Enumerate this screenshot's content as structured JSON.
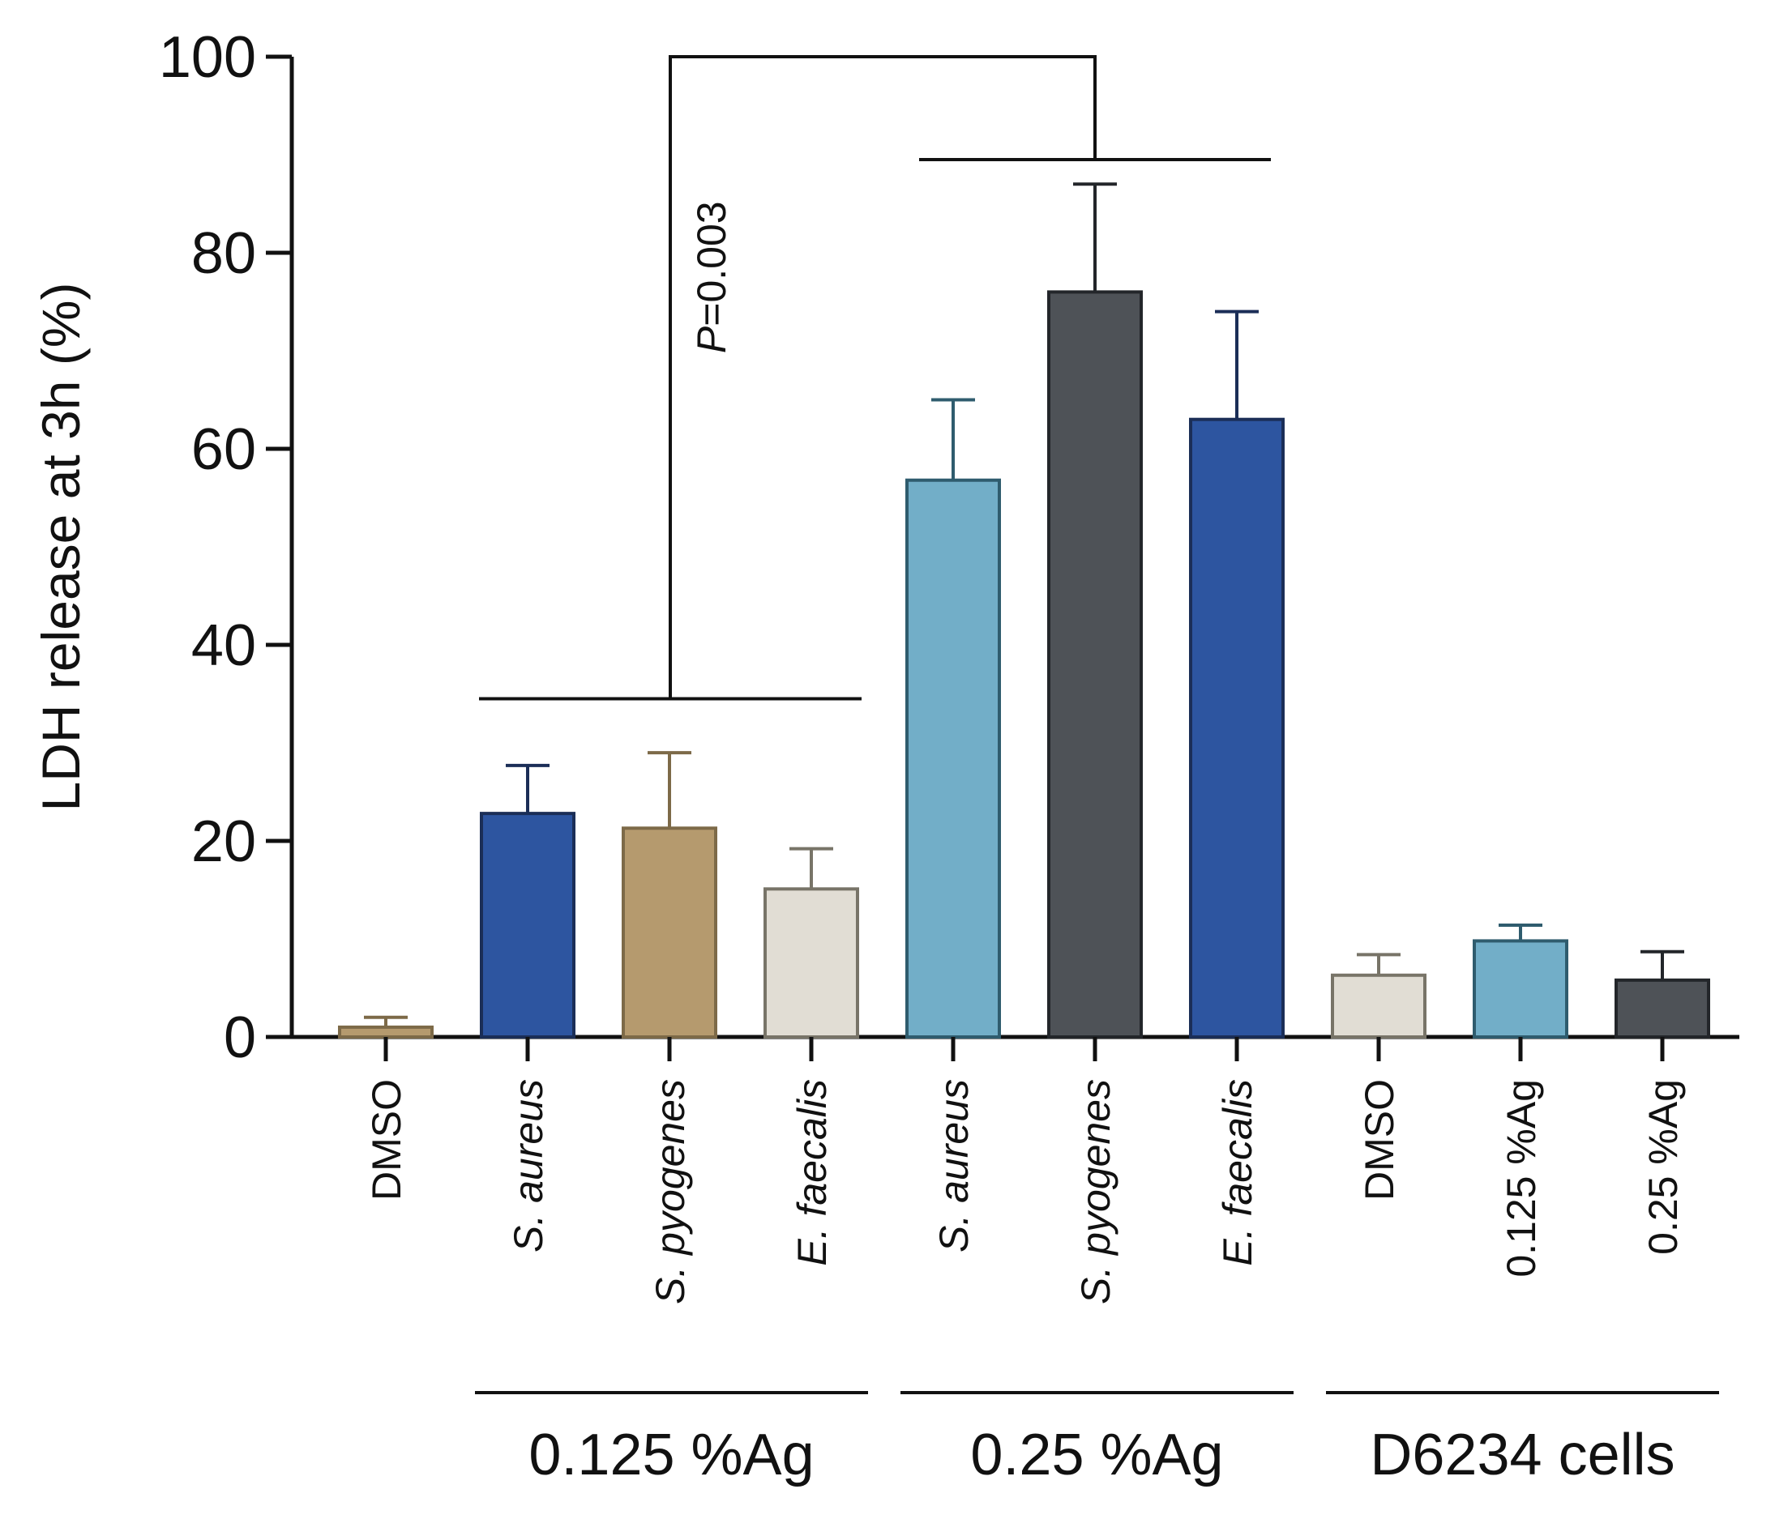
{
  "chart_data": {
    "type": "bar",
    "ylabel": "LDH release at 3h (%)",
    "ylim": [
      0,
      100
    ],
    "yticks": [
      0,
      20,
      40,
      60,
      80,
      100
    ],
    "categories": [
      "DMSO",
      "S. aureus",
      "S. pyogenes",
      "E. faecalis",
      "S. aureus",
      "S. pyogenes",
      "E. faecalis",
      "DMSO",
      "0.125 %Ag",
      "0.25 %Ag"
    ],
    "italic_categories": [
      false,
      true,
      true,
      true,
      true,
      true,
      true,
      false,
      false,
      false
    ],
    "values": [
      1.0,
      22.8,
      21.3,
      15.1,
      56.8,
      76.0,
      63.0,
      6.3,
      9.8,
      5.8
    ],
    "errors": [
      1.0,
      4.9,
      7.7,
      4.1,
      8.2,
      11.0,
      11.0,
      2.1,
      1.6,
      2.9
    ],
    "colors": [
      "#b59a6e",
      "#2d55a0",
      "#b59a6e",
      "#e1ddd4",
      "#72aec8",
      "#4e5257",
      "#2d55a0",
      "#e1ddd4",
      "#72aec8",
      "#4e5257"
    ],
    "edge_colors": [
      "#7d6a48",
      "#1b2e57",
      "#7d6a48",
      "#787468",
      "#2f5c6e",
      "#23262a",
      "#1b2e57",
      "#787468",
      "#2f5c6e",
      "#23262a"
    ],
    "groups": [
      {
        "label": "0.125 %Ag",
        "members": [
          1,
          2,
          3
        ]
      },
      {
        "label": "0.25 %Ag",
        "members": [
          4,
          5,
          6
        ]
      },
      {
        "label": "D6234 cells",
        "members": [
          7,
          8,
          9
        ]
      }
    ],
    "comparison": {
      "text": "P=0.003",
      "italic_part": "P",
      "rest": "=0.003",
      "left_members": [
        1,
        2,
        3
      ],
      "right_members": [
        4,
        5,
        6
      ],
      "left_level": 34.5,
      "right_level": 89.5,
      "top_level": 100
    }
  }
}
